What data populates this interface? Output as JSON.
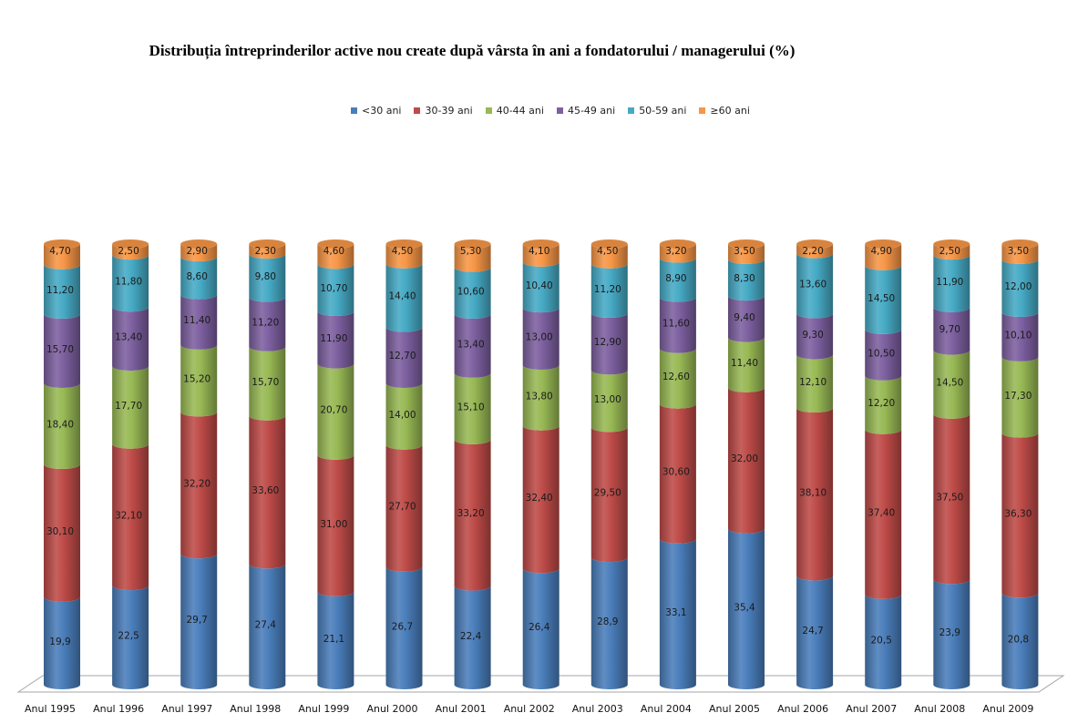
{
  "chart_data": {
    "type": "bar",
    "subtype": "stacked-100-cylinder-3d",
    "title": "Distribuția întreprinderilor active nou create după vârsta în ani a fondatorului / managerului (%)",
    "xlabel": "",
    "ylabel": "",
    "ylim": [
      0,
      100
    ],
    "grid": false,
    "legend_position": "top",
    "categories": [
      "Anul 1995",
      "Anul 1996",
      "Anul 1997",
      "Anul 1998",
      "Anul 1999",
      "Anul 2000",
      "Anul 2001",
      "Anul 2002",
      "Anul 2003",
      "Anul 2004",
      "Anul 2005",
      "Anul 2006",
      "Anul 2007",
      "Anul 2008",
      "Anul 2009"
    ],
    "series": [
      {
        "name": "<30 ani",
        "color": "#4a7ebb",
        "values": [
          19.9,
          22.5,
          29.7,
          27.4,
          21.1,
          26.7,
          22.4,
          26.4,
          28.9,
          33.1,
          35.4,
          24.7,
          20.5,
          23.9,
          20.8
        ],
        "labels": [
          "19,9",
          "22,5",
          "29,7",
          "27,4",
          "21,1",
          "26,7",
          "22,4",
          "26,4",
          "28,9",
          "33,1",
          "35,4",
          "24,7",
          "20,5",
          "23,9",
          "20,8"
        ]
      },
      {
        "name": "30-39 ani",
        "color": "#be4b48",
        "values": [
          30.1,
          32.1,
          32.2,
          33.6,
          31.0,
          27.7,
          33.2,
          32.4,
          29.5,
          30.6,
          32.0,
          38.1,
          37.4,
          37.5,
          36.3
        ],
        "labels": [
          "30,10",
          "32,10",
          "32,20",
          "33,60",
          "31,00",
          "27,70",
          "33,20",
          "32,40",
          "29,50",
          "30,60",
          "32,00",
          "38,10",
          "37,40",
          "37,50",
          "36,30"
        ]
      },
      {
        "name": "40-44 ani",
        "color": "#98b954",
        "values": [
          18.4,
          17.7,
          15.2,
          15.7,
          20.7,
          14.0,
          15.1,
          13.8,
          13.0,
          12.6,
          11.4,
          12.1,
          12.2,
          14.5,
          17.3
        ],
        "labels": [
          "18,40",
          "17,70",
          "15,20",
          "15,70",
          "20,70",
          "14,00",
          "15,10",
          "13,80",
          "13,00",
          "12,60",
          "11,40",
          "12,10",
          "12,20",
          "14,50",
          "17,30"
        ]
      },
      {
        "name": "45-49 ani",
        "color": "#7d60a0",
        "values": [
          15.7,
          13.4,
          11.4,
          11.2,
          11.9,
          12.7,
          13.4,
          13.0,
          12.9,
          11.6,
          9.4,
          9.3,
          10.5,
          9.7,
          10.1
        ],
        "labels": [
          "15,70",
          "13,40",
          "11,40",
          "11,20",
          "11,90",
          "12,70",
          "13,40",
          "13,00",
          "12,90",
          "11,60",
          "9,40",
          "9,30",
          "10,50",
          "9,70",
          "10,10"
        ]
      },
      {
        "name": "50-59 ani",
        "color": "#46aac5",
        "values": [
          11.2,
          11.8,
          8.6,
          9.8,
          10.7,
          14.4,
          10.6,
          10.4,
          11.2,
          8.9,
          8.3,
          13.6,
          14.5,
          11.9,
          12.0
        ],
        "labels": [
          "11,20",
          "11,80",
          "8,60",
          "9,80",
          "10,70",
          "14,40",
          "10,60",
          "10,40",
          "11,20",
          "8,90",
          "8,30",
          "13,60",
          "14,50",
          "11,90",
          "12,00"
        ]
      },
      {
        "name": "≥60 ani",
        "color": "#f79646",
        "values": [
          4.7,
          2.5,
          2.9,
          2.3,
          4.6,
          4.5,
          5.3,
          4.1,
          4.5,
          3.2,
          3.5,
          2.2,
          4.9,
          2.5,
          3.5
        ],
        "labels": [
          "4,70",
          "2,50",
          "2,90",
          "2,30",
          "4,60",
          "4,50",
          "5,30",
          "4,10",
          "4,50",
          "3,20",
          "3,50",
          "2,20",
          "4,90",
          "2,50",
          "3,50"
        ]
      }
    ]
  }
}
